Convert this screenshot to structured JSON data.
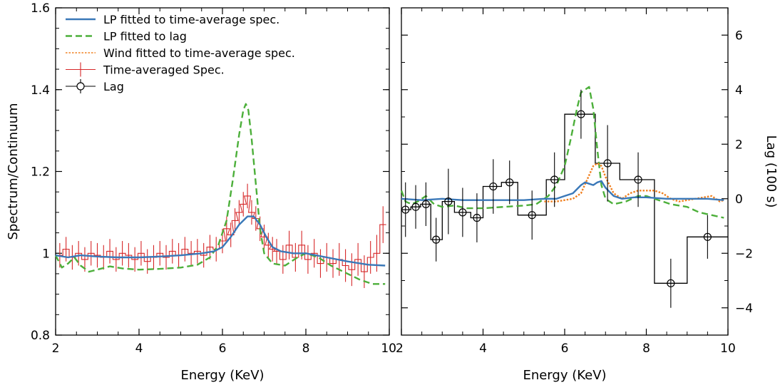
{
  "chart_data": [
    {
      "type": "line",
      "xlabel": "Energy (KeV)",
      "ylabel": "Spectrum/Continuum",
      "xlim": [
        2,
        10
      ],
      "ylim": [
        0.8,
        1.6
      ],
      "xticks": [
        2,
        4,
        6,
        8,
        10
      ],
      "yticks": [
        0.8,
        1,
        1.2,
        1.4,
        1.6
      ],
      "xtick_labels": [
        "2",
        "4",
        "6",
        "8",
        "10"
      ],
      "ytick_labels": [
        "0.8",
        "1",
        "1.2",
        "1.4",
        "1.6"
      ],
      "legend": {
        "placement": "top-left",
        "entries": [
          {
            "label": "LP fitted to time-average spec.",
            "color": "#3a78b8",
            "style": "solid"
          },
          {
            "label": "LP fitted to lag",
            "color": "#4caf3a",
            "style": "dashed"
          },
          {
            "label": "Wind fitted to time-average spec.",
            "color": "#f08020",
            "style": "dotted"
          },
          {
            "label": "Time-averaged Spec.",
            "color": "#d62728",
            "style": "errorbar"
          },
          {
            "label": "Lag",
            "color": "#000000",
            "style": "circle-errorbar"
          }
        ]
      },
      "series": [
        {
          "name": "LP fitted to time-average spec.",
          "color": "#3a78b8",
          "x": [
            2.0,
            2.3,
            2.6,
            3.0,
            3.5,
            4.0,
            4.5,
            5.0,
            5.5,
            5.8,
            6.0,
            6.2,
            6.4,
            6.6,
            6.75,
            6.9,
            7.05,
            7.2,
            7.4,
            7.7,
            8.0,
            8.5,
            9.0,
            9.5,
            9.9
          ],
          "y": [
            0.995,
            0.99,
            0.995,
            0.992,
            0.99,
            0.99,
            0.992,
            0.995,
            1.0,
            1.005,
            1.015,
            1.04,
            1.07,
            1.09,
            1.09,
            1.07,
            1.04,
            1.015,
            1.005,
            1.0,
            1.0,
            0.99,
            0.98,
            0.972,
            0.97
          ]
        },
        {
          "name": "LP fitted to lag",
          "color": "#4caf3a",
          "x": [
            2.0,
            2.15,
            2.3,
            2.45,
            2.6,
            2.8,
            3.0,
            3.3,
            3.6,
            4.0,
            4.5,
            5.0,
            5.4,
            5.7,
            5.9,
            6.1,
            6.25,
            6.4,
            6.5,
            6.56,
            6.62,
            6.7,
            6.8,
            6.9,
            7.0,
            7.2,
            7.5,
            7.8,
            8.0,
            8.3,
            8.6,
            9.0,
            9.3,
            9.6,
            9.9
          ],
          "y": [
            0.995,
            0.965,
            0.975,
            0.99,
            0.97,
            0.955,
            0.96,
            0.968,
            0.963,
            0.96,
            0.962,
            0.965,
            0.972,
            0.99,
            1.02,
            1.08,
            1.18,
            1.29,
            1.35,
            1.365,
            1.35,
            1.28,
            1.17,
            1.06,
            1.0,
            0.975,
            0.97,
            0.99,
            1.0,
            0.99,
            0.97,
            0.95,
            0.935,
            0.925,
            0.925
          ]
        },
        {
          "name": "Time-averaged Spec.",
          "color": "#d62728",
          "x": [
            2.1,
            2.25,
            2.4,
            2.55,
            2.7,
            2.85,
            3.0,
            3.15,
            3.3,
            3.45,
            3.6,
            3.75,
            3.9,
            4.05,
            4.2,
            4.35,
            4.5,
            4.65,
            4.8,
            4.95,
            5.1,
            5.25,
            5.4,
            5.55,
            5.7,
            5.85,
            6.0,
            6.1,
            6.2,
            6.3,
            6.4,
            6.5,
            6.6,
            6.7,
            6.8,
            6.9,
            7.0,
            7.1,
            7.2,
            7.3,
            7.45,
            7.6,
            7.75,
            7.9,
            8.05,
            8.2,
            8.35,
            8.5,
            8.65,
            8.8,
            8.95,
            9.1,
            9.25,
            9.4,
            9.55,
            9.7,
            9.85
          ],
          "y": [
            0.995,
            1.01,
            0.99,
            1.0,
            0.985,
            1.0,
            0.995,
            0.99,
            1.005,
            0.985,
            1.0,
            0.995,
            0.985,
            1.0,
            0.98,
            0.99,
            1.0,
            0.99,
            1.005,
            0.995,
            1.01,
            1.0,
            1.005,
            0.995,
            1.015,
            1.01,
            1.03,
            1.06,
            1.045,
            1.08,
            1.1,
            1.12,
            1.14,
            1.1,
            1.085,
            1.06,
            1.04,
            1.02,
            1.01,
            1.005,
            0.985,
            1.02,
            0.99,
            1.02,
            0.985,
            1.0,
            0.975,
            0.99,
            0.975,
            0.985,
            0.97,
            0.96,
            0.985,
            0.955,
            0.99,
            1.0,
            1.07
          ],
          "yerr": [
            0.03,
            0.03,
            0.03,
            0.03,
            0.03,
            0.03,
            0.03,
            0.03,
            0.03,
            0.03,
            0.03,
            0.03,
            0.03,
            0.03,
            0.03,
            0.03,
            0.03,
            0.03,
            0.03,
            0.03,
            0.03,
            0.03,
            0.03,
            0.03,
            0.03,
            0.03,
            0.03,
            0.03,
            0.03,
            0.03,
            0.03,
            0.03,
            0.03,
            0.03,
            0.03,
            0.03,
            0.03,
            0.03,
            0.03,
            0.03,
            0.035,
            0.035,
            0.035,
            0.035,
            0.035,
            0.035,
            0.035,
            0.035,
            0.035,
            0.04,
            0.04,
            0.04,
            0.04,
            0.04,
            0.04,
            0.045,
            0.045
          ]
        }
      ]
    },
    {
      "type": "line",
      "xlabel": "Energy (KeV)",
      "ylabel": "Lag (100 s)",
      "xlim": [
        2,
        10
      ],
      "ylim": [
        -5,
        7
      ],
      "xticks": [
        2,
        4,
        6,
        8,
        10
      ],
      "yticks": [
        -4,
        -2,
        0,
        2,
        4,
        6
      ],
      "xtick_labels": [
        "2",
        "4",
        "6",
        "8",
        "10"
      ],
      "ytick_labels": [
        "−4",
        "−2",
        "0",
        "2",
        "4",
        "6"
      ],
      "series": [
        {
          "name": "LP fitted to time-average spec.",
          "color": "#3a78b8",
          "x": [
            2.0,
            2.5,
            3.0,
            3.5,
            4.0,
            4.5,
            5.0,
            5.5,
            5.8,
            6.0,
            6.2,
            6.4,
            6.5,
            6.6,
            6.7,
            6.8,
            6.9,
            7.0,
            7.2,
            7.4,
            7.7,
            8.0,
            8.5,
            9.0,
            9.5,
            9.9
          ],
          "y": [
            0.0,
            -0.05,
            0.0,
            -0.05,
            -0.05,
            -0.05,
            -0.05,
            0.0,
            0.0,
            0.1,
            0.2,
            0.5,
            0.6,
            0.55,
            0.5,
            0.6,
            0.65,
            0.4,
            0.1,
            0.0,
            0.05,
            0.05,
            0.0,
            0.0,
            0.0,
            -0.05
          ]
        },
        {
          "name": "LP fitted to lag",
          "color": "#4caf3a",
          "x": [
            2.0,
            2.1,
            2.25,
            2.4,
            2.6,
            2.8,
            3.0,
            3.3,
            3.6,
            4.0,
            4.5,
            5.0,
            5.3,
            5.6,
            5.8,
            6.0,
            6.15,
            6.3,
            6.4,
            6.5,
            6.6,
            6.7,
            6.8,
            6.9,
            7.0,
            7.2,
            7.5,
            7.8,
            8.0,
            8.3,
            8.6,
            9.0,
            9.3,
            9.6,
            9.9
          ],
          "y": [
            0.3,
            -0.1,
            -0.2,
            -0.1,
            0.1,
            -0.2,
            -0.3,
            -0.25,
            -0.35,
            -0.35,
            -0.3,
            -0.25,
            -0.2,
            0.1,
            0.5,
            1.2,
            2.2,
            3.3,
            3.9,
            4.0,
            4.1,
            3.3,
            1.8,
            0.5,
            0.0,
            -0.2,
            -0.1,
            0.1,
            0.1,
            -0.05,
            -0.2,
            -0.3,
            -0.5,
            -0.6,
            -0.7
          ]
        },
        {
          "name": "Wind fitted to time-average spec.",
          "color": "#f08020",
          "x": [
            5.5,
            5.8,
            6.0,
            6.2,
            6.4,
            6.55,
            6.7,
            6.8,
            6.9,
            7.0,
            7.2,
            7.4,
            7.6,
            7.8,
            8.0,
            8.2,
            8.4,
            8.6,
            8.8,
            9.0,
            9.2,
            9.4,
            9.6,
            9.8,
            9.9
          ],
          "y": [
            -0.1,
            -0.1,
            -0.05,
            0.0,
            0.2,
            0.7,
            1.2,
            1.3,
            1.2,
            0.8,
            0.2,
            0.0,
            0.2,
            0.3,
            0.3,
            0.3,
            0.2,
            0.0,
            -0.1,
            -0.05,
            0.0,
            0.05,
            0.1,
            -0.1,
            -0.05
          ]
        },
        {
          "name": "Lag",
          "color": "#000000",
          "x": [
            2.1,
            2.35,
            2.6,
            2.85,
            3.15,
            3.5,
            3.85,
            4.25,
            4.65,
            5.2,
            5.75,
            6.4,
            7.05,
            7.8,
            8.6,
            9.5
          ],
          "y": [
            -0.4,
            -0.3,
            -0.2,
            -1.5,
            -0.1,
            -0.5,
            -0.7,
            0.45,
            0.6,
            -0.6,
            0.7,
            3.1,
            1.3,
            0.7,
            -3.1,
            -1.4
          ],
          "yerr": [
            1.0,
            0.8,
            0.8,
            0.8,
            1.2,
            0.9,
            0.9,
            1.0,
            0.8,
            0.9,
            1.0,
            0.9,
            1.4,
            1.0,
            0.9,
            0.8
          ],
          "bin_edges": [
            2.0,
            2.23,
            2.47,
            2.72,
            3.0,
            3.3,
            3.7,
            4.0,
            4.45,
            4.85,
            5.55,
            6.0,
            6.75,
            7.35,
            8.2,
            9.0,
            10.0
          ]
        }
      ]
    }
  ]
}
